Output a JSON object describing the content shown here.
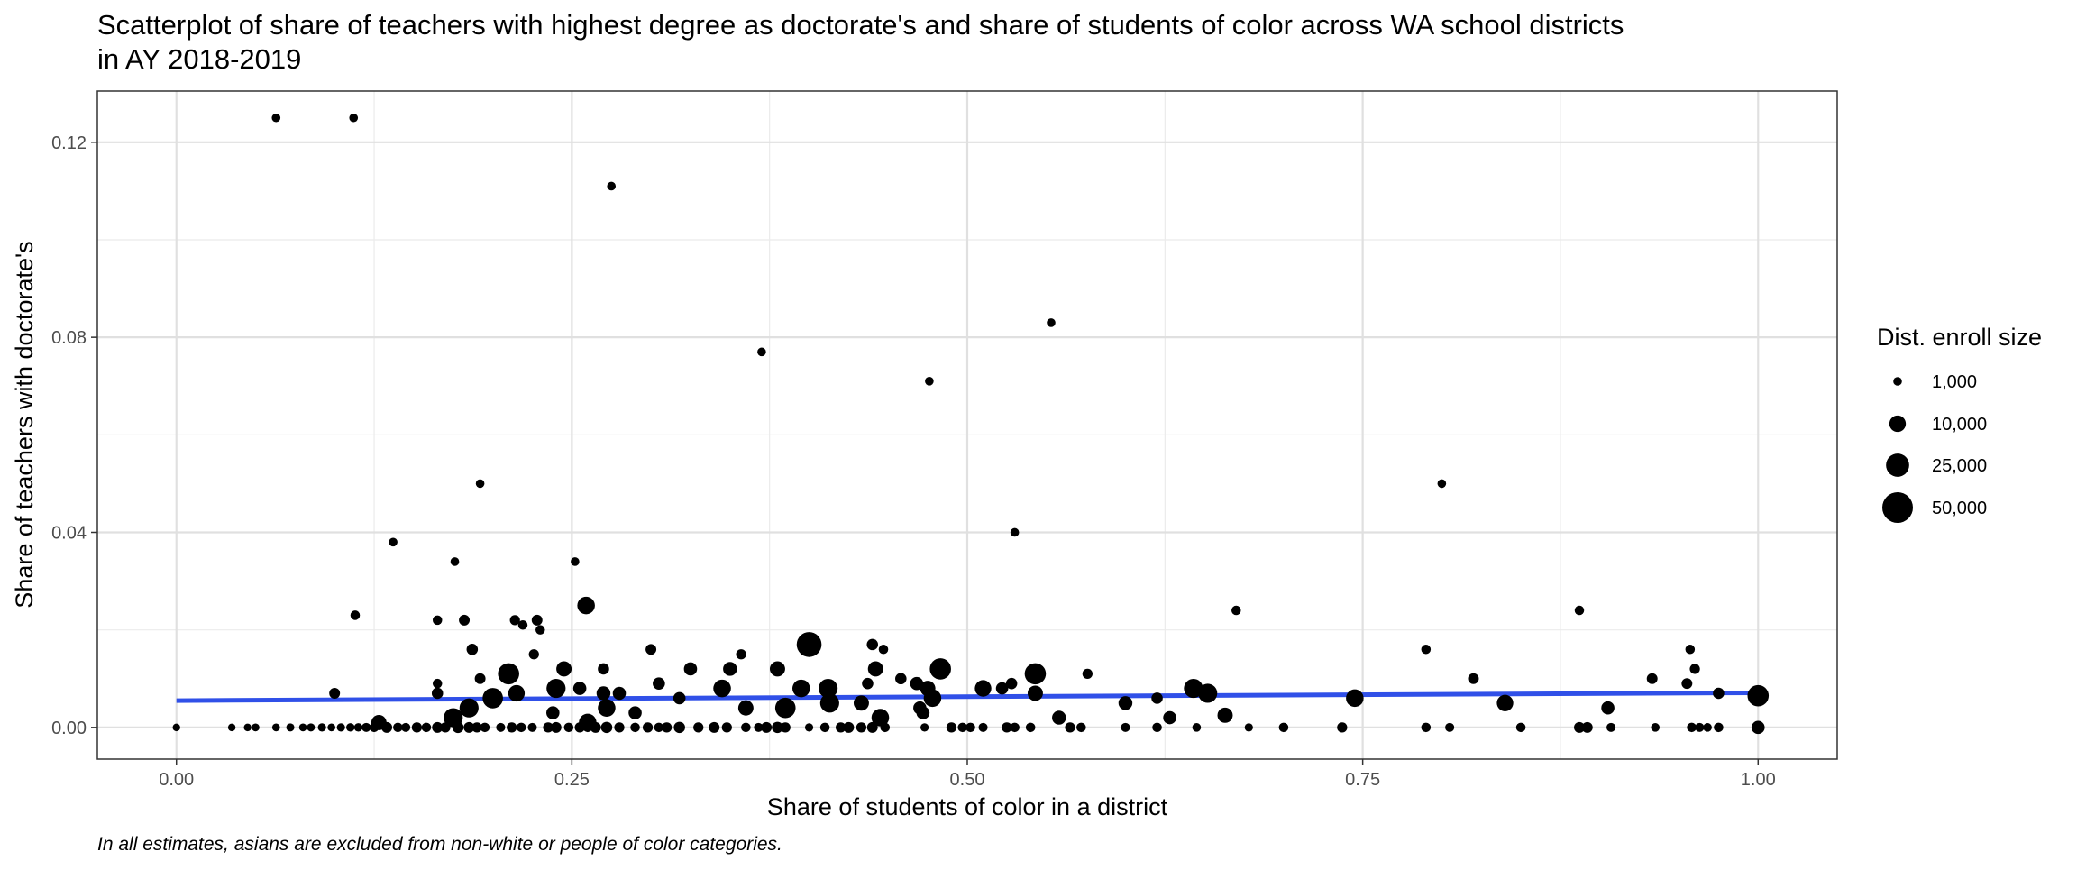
{
  "chart_data": {
    "type": "scatter",
    "title_lines": [
      "Scatterplot of share of teachers with highest degree as doctorate's and share of students of color across WA school districts",
      "in AY 2018-2019"
    ],
    "xlabel": "Share of students of color in a district",
    "ylabel": "Share of teachers with doctorate's",
    "caption": "In all estimates, asians are excluded from non-white or people of color categories.",
    "xlim": [
      -0.05,
      1.05
    ],
    "ylim": [
      -0.0065,
      0.1305
    ],
    "x_ticks": [
      0,
      0.25,
      0.5,
      0.75,
      1
    ],
    "x_tick_labels": [
      "0.00",
      "0.25",
      "0.50",
      "0.75",
      "1.00"
    ],
    "y_ticks": [
      0,
      0.04,
      0.08,
      0.12
    ],
    "y_tick_labels": [
      "0.00",
      "0.04",
      "0.08",
      "0.12"
    ],
    "grid": true,
    "legend": {
      "title": "Dist. enroll size",
      "position": "right",
      "values": [
        1000,
        10000,
        25000,
        50000
      ],
      "labels": [
        "1,000",
        "10,000",
        "25,000",
        "50,000"
      ]
    },
    "trend_line": {
      "color": "#3050e8",
      "x": [
        0,
        1
      ],
      "y": [
        0.0055,
        0.0071
      ]
    },
    "point_color": "#000000",
    "points": [
      {
        "x": 0.063,
        "y": 0.125,
        "size": 1000
      },
      {
        "x": 0.112,
        "y": 0.125,
        "size": 1000
      },
      {
        "x": 0.275,
        "y": 0.111,
        "size": 1000
      },
      {
        "x": 0.553,
        "y": 0.083,
        "size": 1000
      },
      {
        "x": 0.37,
        "y": 0.077,
        "size": 1000
      },
      {
        "x": 0.476,
        "y": 0.071,
        "size": 1000
      },
      {
        "x": 0.192,
        "y": 0.05,
        "size": 1000
      },
      {
        "x": 0.8,
        "y": 0.05,
        "size": 1000
      },
      {
        "x": 0.53,
        "y": 0.04,
        "size": 1000
      },
      {
        "x": 0.137,
        "y": 0.038,
        "size": 1000
      },
      {
        "x": 0.176,
        "y": 0.034,
        "size": 1000
      },
      {
        "x": 0.252,
        "y": 0.034,
        "size": 1000
      },
      {
        "x": 0.259,
        "y": 0.025,
        "size": 12000
      },
      {
        "x": 0.67,
        "y": 0.024,
        "size": 1500
      },
      {
        "x": 0.887,
        "y": 0.024,
        "size": 1500
      },
      {
        "x": 0.113,
        "y": 0.023,
        "size": 1500
      },
      {
        "x": 0.165,
        "y": 0.022,
        "size": 1500
      },
      {
        "x": 0.182,
        "y": 0.022,
        "size": 2500
      },
      {
        "x": 0.214,
        "y": 0.022,
        "size": 2000
      },
      {
        "x": 0.219,
        "y": 0.021,
        "size": 1500
      },
      {
        "x": 0.228,
        "y": 0.022,
        "size": 2500
      },
      {
        "x": 0.23,
        "y": 0.02,
        "size": 1500
      },
      {
        "x": 0.4,
        "y": 0.017,
        "size": 30000
      },
      {
        "x": 0.44,
        "y": 0.017,
        "size": 3000
      },
      {
        "x": 0.447,
        "y": 0.016,
        "size": 1500
      },
      {
        "x": 0.187,
        "y": 0.016,
        "size": 3000
      },
      {
        "x": 0.226,
        "y": 0.015,
        "size": 2000
      },
      {
        "x": 0.3,
        "y": 0.016,
        "size": 2500
      },
      {
        "x": 0.357,
        "y": 0.015,
        "size": 2000
      },
      {
        "x": 0.79,
        "y": 0.016,
        "size": 1500
      },
      {
        "x": 0.957,
        "y": 0.016,
        "size": 1500
      },
      {
        "x": 0.21,
        "y": 0.011,
        "size": 20000
      },
      {
        "x": 0.245,
        "y": 0.012,
        "size": 8000
      },
      {
        "x": 0.27,
        "y": 0.012,
        "size": 3000
      },
      {
        "x": 0.325,
        "y": 0.012,
        "size": 5000
      },
      {
        "x": 0.35,
        "y": 0.012,
        "size": 6000
      },
      {
        "x": 0.38,
        "y": 0.012,
        "size": 8000
      },
      {
        "x": 0.442,
        "y": 0.012,
        "size": 8000
      },
      {
        "x": 0.483,
        "y": 0.012,
        "size": 20000
      },
      {
        "x": 0.543,
        "y": 0.011,
        "size": 20000
      },
      {
        "x": 0.576,
        "y": 0.011,
        "size": 2000
      },
      {
        "x": 0.96,
        "y": 0.012,
        "size": 2000
      },
      {
        "x": 0.165,
        "y": 0.009,
        "size": 1500
      },
      {
        "x": 0.192,
        "y": 0.01,
        "size": 2500
      },
      {
        "x": 0.24,
        "y": 0.008,
        "size": 15000
      },
      {
        "x": 0.255,
        "y": 0.008,
        "size": 5000
      },
      {
        "x": 0.305,
        "y": 0.009,
        "size": 4000
      },
      {
        "x": 0.345,
        "y": 0.008,
        "size": 12000
      },
      {
        "x": 0.395,
        "y": 0.008,
        "size": 12000
      },
      {
        "x": 0.412,
        "y": 0.008,
        "size": 15000
      },
      {
        "x": 0.437,
        "y": 0.009,
        "size": 3000
      },
      {
        "x": 0.458,
        "y": 0.01,
        "size": 3000
      },
      {
        "x": 0.468,
        "y": 0.009,
        "size": 5000
      },
      {
        "x": 0.475,
        "y": 0.008,
        "size": 8000
      },
      {
        "x": 0.51,
        "y": 0.008,
        "size": 10000
      },
      {
        "x": 0.522,
        "y": 0.008,
        "size": 4000
      },
      {
        "x": 0.528,
        "y": 0.009,
        "size": 3000
      },
      {
        "x": 0.643,
        "y": 0.008,
        "size": 15000
      },
      {
        "x": 0.82,
        "y": 0.01,
        "size": 2500
      },
      {
        "x": 0.933,
        "y": 0.01,
        "size": 2500
      },
      {
        "x": 0.955,
        "y": 0.009,
        "size": 2500
      },
      {
        "x": 0.1,
        "y": 0.007,
        "size": 2500
      },
      {
        "x": 0.165,
        "y": 0.007,
        "size": 3000
      },
      {
        "x": 0.2,
        "y": 0.006,
        "size": 18000
      },
      {
        "x": 0.215,
        "y": 0.007,
        "size": 10000
      },
      {
        "x": 0.27,
        "y": 0.007,
        "size": 6000
      },
      {
        "x": 0.28,
        "y": 0.007,
        "size": 5000
      },
      {
        "x": 0.318,
        "y": 0.006,
        "size": 4000
      },
      {
        "x": 0.478,
        "y": 0.006,
        "size": 12000
      },
      {
        "x": 0.543,
        "y": 0.007,
        "size": 8000
      },
      {
        "x": 0.652,
        "y": 0.007,
        "size": 15000
      },
      {
        "x": 0.62,
        "y": 0.006,
        "size": 3000
      },
      {
        "x": 0.745,
        "y": 0.006,
        "size": 12000
      },
      {
        "x": 0.975,
        "y": 0.007,
        "size": 3000
      },
      {
        "x": 1.0,
        "y": 0.0065,
        "size": 20000
      },
      {
        "x": 0.185,
        "y": 0.004,
        "size": 15000
      },
      {
        "x": 0.272,
        "y": 0.004,
        "size": 12000
      },
      {
        "x": 0.36,
        "y": 0.004,
        "size": 8000
      },
      {
        "x": 0.385,
        "y": 0.004,
        "size": 18000
      },
      {
        "x": 0.413,
        "y": 0.005,
        "size": 15000
      },
      {
        "x": 0.433,
        "y": 0.005,
        "size": 8000
      },
      {
        "x": 0.47,
        "y": 0.004,
        "size": 5000
      },
      {
        "x": 0.6,
        "y": 0.005,
        "size": 6000
      },
      {
        "x": 0.84,
        "y": 0.005,
        "size": 10000
      },
      {
        "x": 0.905,
        "y": 0.004,
        "size": 5000
      },
      {
        "x": 0.175,
        "y": 0.002,
        "size": 15000
      },
      {
        "x": 0.238,
        "y": 0.003,
        "size": 5000
      },
      {
        "x": 0.29,
        "y": 0.003,
        "size": 5000
      },
      {
        "x": 0.445,
        "y": 0.002,
        "size": 12000
      },
      {
        "x": 0.472,
        "y": 0.003,
        "size": 5000
      },
      {
        "x": 0.558,
        "y": 0.002,
        "size": 6000
      },
      {
        "x": 0.628,
        "y": 0.002,
        "size": 5000
      },
      {
        "x": 0.663,
        "y": 0.0025,
        "size": 8000
      },
      {
        "x": 0.128,
        "y": 0.001,
        "size": 8000
      },
      {
        "x": 0.26,
        "y": 0.001,
        "size": 12000
      },
      {
        "x": 0.0,
        "y": 0.0,
        "size": 500
      },
      {
        "x": 0.035,
        "y": 0.0,
        "size": 500
      },
      {
        "x": 0.045,
        "y": 0.0,
        "size": 500
      },
      {
        "x": 0.05,
        "y": 0.0,
        "size": 600
      },
      {
        "x": 0.063,
        "y": 0.0,
        "size": 600
      },
      {
        "x": 0.072,
        "y": 0.0,
        "size": 700
      },
      {
        "x": 0.08,
        "y": 0.0,
        "size": 600
      },
      {
        "x": 0.085,
        "y": 0.0,
        "size": 700
      },
      {
        "x": 0.092,
        "y": 0.0,
        "size": 800
      },
      {
        "x": 0.098,
        "y": 0.0,
        "size": 600
      },
      {
        "x": 0.104,
        "y": 0.0,
        "size": 800
      },
      {
        "x": 0.11,
        "y": 0.0,
        "size": 900
      },
      {
        "x": 0.115,
        "y": 0.0,
        "size": 900
      },
      {
        "x": 0.12,
        "y": 0.0,
        "size": 1200
      },
      {
        "x": 0.125,
        "y": 0.0,
        "size": 1500
      },
      {
        "x": 0.133,
        "y": 0.0,
        "size": 2500
      },
      {
        "x": 0.14,
        "y": 0.0,
        "size": 1500
      },
      {
        "x": 0.145,
        "y": 0.0,
        "size": 1200
      },
      {
        "x": 0.152,
        "y": 0.0,
        "size": 2000
      },
      {
        "x": 0.158,
        "y": 0.0,
        "size": 1500
      },
      {
        "x": 0.165,
        "y": 0.0,
        "size": 2500
      },
      {
        "x": 0.17,
        "y": 0.0,
        "size": 2000
      },
      {
        "x": 0.178,
        "y": 0.0,
        "size": 3000
      },
      {
        "x": 0.185,
        "y": 0.0,
        "size": 2500
      },
      {
        "x": 0.19,
        "y": 0.0,
        "size": 2000
      },
      {
        "x": 0.195,
        "y": 0.0,
        "size": 1500
      },
      {
        "x": 0.205,
        "y": 0.0,
        "size": 1200
      },
      {
        "x": 0.212,
        "y": 0.0,
        "size": 2000
      },
      {
        "x": 0.218,
        "y": 0.0,
        "size": 1500
      },
      {
        "x": 0.225,
        "y": 0.0,
        "size": 1200
      },
      {
        "x": 0.235,
        "y": 0.0,
        "size": 2000
      },
      {
        "x": 0.24,
        "y": 0.0,
        "size": 2500
      },
      {
        "x": 0.248,
        "y": 0.0,
        "size": 1500
      },
      {
        "x": 0.255,
        "y": 0.0,
        "size": 2000
      },
      {
        "x": 0.26,
        "y": 0.0,
        "size": 1500
      },
      {
        "x": 0.265,
        "y": 0.0,
        "size": 2500
      },
      {
        "x": 0.272,
        "y": 0.0,
        "size": 3000
      },
      {
        "x": 0.28,
        "y": 0.0,
        "size": 2000
      },
      {
        "x": 0.29,
        "y": 0.0,
        "size": 1500
      },
      {
        "x": 0.298,
        "y": 0.0,
        "size": 2000
      },
      {
        "x": 0.305,
        "y": 0.0,
        "size": 1500
      },
      {
        "x": 0.31,
        "y": 0.0,
        "size": 2000
      },
      {
        "x": 0.318,
        "y": 0.0,
        "size": 3000
      },
      {
        "x": 0.33,
        "y": 0.0,
        "size": 2000
      },
      {
        "x": 0.34,
        "y": 0.0,
        "size": 2500
      },
      {
        "x": 0.348,
        "y": 0.0,
        "size": 2000
      },
      {
        "x": 0.36,
        "y": 0.0,
        "size": 1500
      },
      {
        "x": 0.368,
        "y": 0.0,
        "size": 1200
      },
      {
        "x": 0.373,
        "y": 0.0,
        "size": 2500
      },
      {
        "x": 0.38,
        "y": 0.0,
        "size": 3000
      },
      {
        "x": 0.385,
        "y": 0.0,
        "size": 2000
      },
      {
        "x": 0.4,
        "y": 0.0,
        "size": 800
      },
      {
        "x": 0.41,
        "y": 0.0,
        "size": 1500
      },
      {
        "x": 0.42,
        "y": 0.0,
        "size": 2000
      },
      {
        "x": 0.425,
        "y": 0.0,
        "size": 2500
      },
      {
        "x": 0.433,
        "y": 0.0,
        "size": 2000
      },
      {
        "x": 0.44,
        "y": 0.0,
        "size": 2500
      },
      {
        "x": 0.448,
        "y": 0.0,
        "size": 1500
      },
      {
        "x": 0.473,
        "y": 0.0,
        "size": 800
      },
      {
        "x": 0.49,
        "y": 0.0,
        "size": 2000
      },
      {
        "x": 0.497,
        "y": 0.0,
        "size": 1500
      },
      {
        "x": 0.502,
        "y": 0.0,
        "size": 1500
      },
      {
        "x": 0.51,
        "y": 0.0,
        "size": 1200
      },
      {
        "x": 0.525,
        "y": 0.0,
        "size": 2000
      },
      {
        "x": 0.53,
        "y": 0.0,
        "size": 1500
      },
      {
        "x": 0.54,
        "y": 0.0,
        "size": 1500
      },
      {
        "x": 0.565,
        "y": 0.0,
        "size": 2000
      },
      {
        "x": 0.572,
        "y": 0.0,
        "size": 1500
      },
      {
        "x": 0.6,
        "y": 0.0,
        "size": 1200
      },
      {
        "x": 0.62,
        "y": 0.0,
        "size": 1500
      },
      {
        "x": 0.645,
        "y": 0.0,
        "size": 1000
      },
      {
        "x": 0.678,
        "y": 0.0,
        "size": 800
      },
      {
        "x": 0.7,
        "y": 0.0,
        "size": 1500
      },
      {
        "x": 0.737,
        "y": 0.0,
        "size": 2000
      },
      {
        "x": 0.79,
        "y": 0.0,
        "size": 1500
      },
      {
        "x": 0.805,
        "y": 0.0,
        "size": 1200
      },
      {
        "x": 0.85,
        "y": 0.0,
        "size": 1500
      },
      {
        "x": 0.887,
        "y": 0.0,
        "size": 2500
      },
      {
        "x": 0.892,
        "y": 0.0,
        "size": 2500
      },
      {
        "x": 0.907,
        "y": 0.0,
        "size": 1200
      },
      {
        "x": 0.935,
        "y": 0.0,
        "size": 1000
      },
      {
        "x": 0.958,
        "y": 0.0,
        "size": 1500
      },
      {
        "x": 0.963,
        "y": 0.0,
        "size": 1200
      },
      {
        "x": 0.968,
        "y": 0.0,
        "size": 1000
      },
      {
        "x": 0.975,
        "y": 0.0,
        "size": 1500
      },
      {
        "x": 1.0,
        "y": 0.0,
        "size": 5000
      }
    ]
  }
}
